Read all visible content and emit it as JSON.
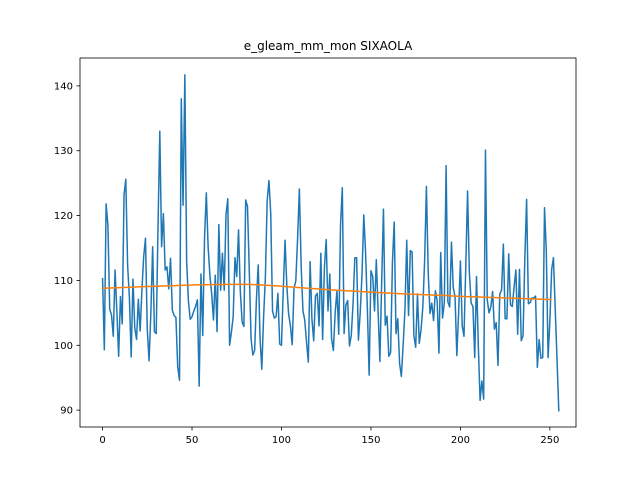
{
  "chart_data": {
    "type": "line",
    "title": "e_gleam_mm_mon SIXAOLA",
    "xlabel": "",
    "ylabel": "",
    "xlim": [
      -12.6,
      264.6
    ],
    "ylim": [
      87.4,
      144.3
    ],
    "x_ticks": [
      0,
      50,
      100,
      150,
      200,
      250
    ],
    "y_ticks": [
      90,
      100,
      110,
      120,
      130,
      140
    ],
    "grid": false,
    "legend": "none",
    "series": [
      {
        "color": "#1f77b4",
        "x_start": 0,
        "x_step": 1,
        "values": [
          110.4,
          99.3,
          121.8,
          118.5,
          105.6,
          104.7,
          101.4,
          111.6,
          105.2,
          98.3,
          107.5,
          103.3,
          123.2,
          125.6,
          112.4,
          107.4,
          98.2,
          110.2,
          102.7,
          100.9,
          107.1,
          102.2,
          108.5,
          113.7,
          116.5,
          102.4,
          97.6,
          105.0,
          115.2,
          102.1,
          101.8,
          118.3,
          133.0,
          115.2,
          120.3,
          111.6,
          112.1,
          108.7,
          113.4,
          105.4,
          104.6,
          104.3,
          96.7,
          94.6,
          138.0,
          121.6,
          141.7,
          112.9,
          106.8,
          104.0,
          104.4,
          105.3,
          106.0,
          107.0,
          93.7,
          111.0,
          101.5,
          116.6,
          123.5,
          115.2,
          110.8,
          107.9,
          103.9,
          110.8,
          102.1,
          118.6,
          108.5,
          114.2,
          108.5,
          120.2,
          122.6,
          100.0,
          102.0,
          104.4,
          113.5,
          110.6,
          117.8,
          108.3,
          103.6,
          102.9,
          122.4,
          121.4,
          111.6,
          101.0,
          98.5,
          99.2,
          107.1,
          112.4,
          101.2,
          96.3,
          104.3,
          110.4,
          122.3,
          125.4,
          120.3,
          105.3,
          104.2,
          104.4,
          108.0,
          100.2,
          100.0,
          108.6,
          116.2,
          109.1,
          104.8,
          103.0,
          100.1,
          108.8,
          109.9,
          116.4,
          124.1,
          112.2,
          105.3,
          103.9,
          100.5,
          97.4,
          112.9,
          104.1,
          100.7,
          107.6,
          108.0,
          103.0,
          114.2,
          100.9,
          112.0,
          116.3,
          105.3,
          111.0,
          101.0,
          99.2,
          105.0,
          108.4,
          101.7,
          118.6,
          124.3,
          101.8,
          106.2,
          106.9,
          99.9,
          101.5,
          106.4,
          113.5,
          113.5,
          100.8,
          105.0,
          110.9,
          120.1,
          114.3,
          105.6,
          95.4,
          111.5,
          110.6,
          105.3,
          113.2,
          105.3,
          97.5,
          109.8,
          121.0,
          103.1,
          104.5,
          98.3,
          98.9,
          112.7,
          119.0,
          101.8,
          104.1,
          97.2,
          95.2,
          100.1,
          105.4,
          116.2,
          104.6,
          114.6,
          114.4,
          101.5,
          99.7,
          107.9,
          100.3,
          102.4,
          105.9,
          113.0,
          124.5,
          111.3,
          104.9,
          106.5,
          103.8,
          108.4,
          106.9,
          98.8,
          114.3,
          104.2,
          106.5,
          127.7,
          106.7,
          105.9,
          115.9,
          108.9,
          107.5,
          98.4,
          105.0,
          113.0,
          103.0,
          101.4,
          112.2,
          123.8,
          111.2,
          106.5,
          106.0,
          98.1,
          110.6,
          100.0,
          91.5,
          94.5,
          91.7,
          130.1,
          107.0,
          105.0,
          105.9,
          108.3,
          102.5,
          103.5,
          96.9,
          107.9,
          108.5,
          115.6,
          104.1,
          104.1,
          114.1,
          106.2,
          106.0,
          109.0,
          111.6,
          101.7,
          111.7,
          100.7,
          101.5,
          113.4,
          122.5,
          106.4,
          106.6,
          107.3,
          107.3,
          107.6,
          96.6,
          100.9,
          98.0,
          98.1,
          121.2,
          114.6,
          98.1,
          103.8,
          111.7,
          113.5,
          105.5,
          97.8,
          89.8
        ]
      },
      {
        "color": "#ff7f0e",
        "x": [
          0,
          10,
          20,
          30,
          40,
          50,
          60,
          70,
          80,
          90,
          100,
          110,
          120,
          130,
          140,
          150,
          160,
          170,
          180,
          190,
          200,
          210,
          220,
          230,
          240,
          251
        ],
        "values": [
          108.8,
          108.9,
          109.0,
          109.1,
          109.2,
          109.3,
          109.35,
          109.4,
          109.4,
          109.3,
          109.1,
          108.9,
          108.7,
          108.5,
          108.35,
          108.2,
          108.05,
          107.9,
          107.8,
          107.7,
          107.55,
          107.45,
          107.35,
          107.25,
          107.15,
          107.05
        ]
      }
    ]
  }
}
